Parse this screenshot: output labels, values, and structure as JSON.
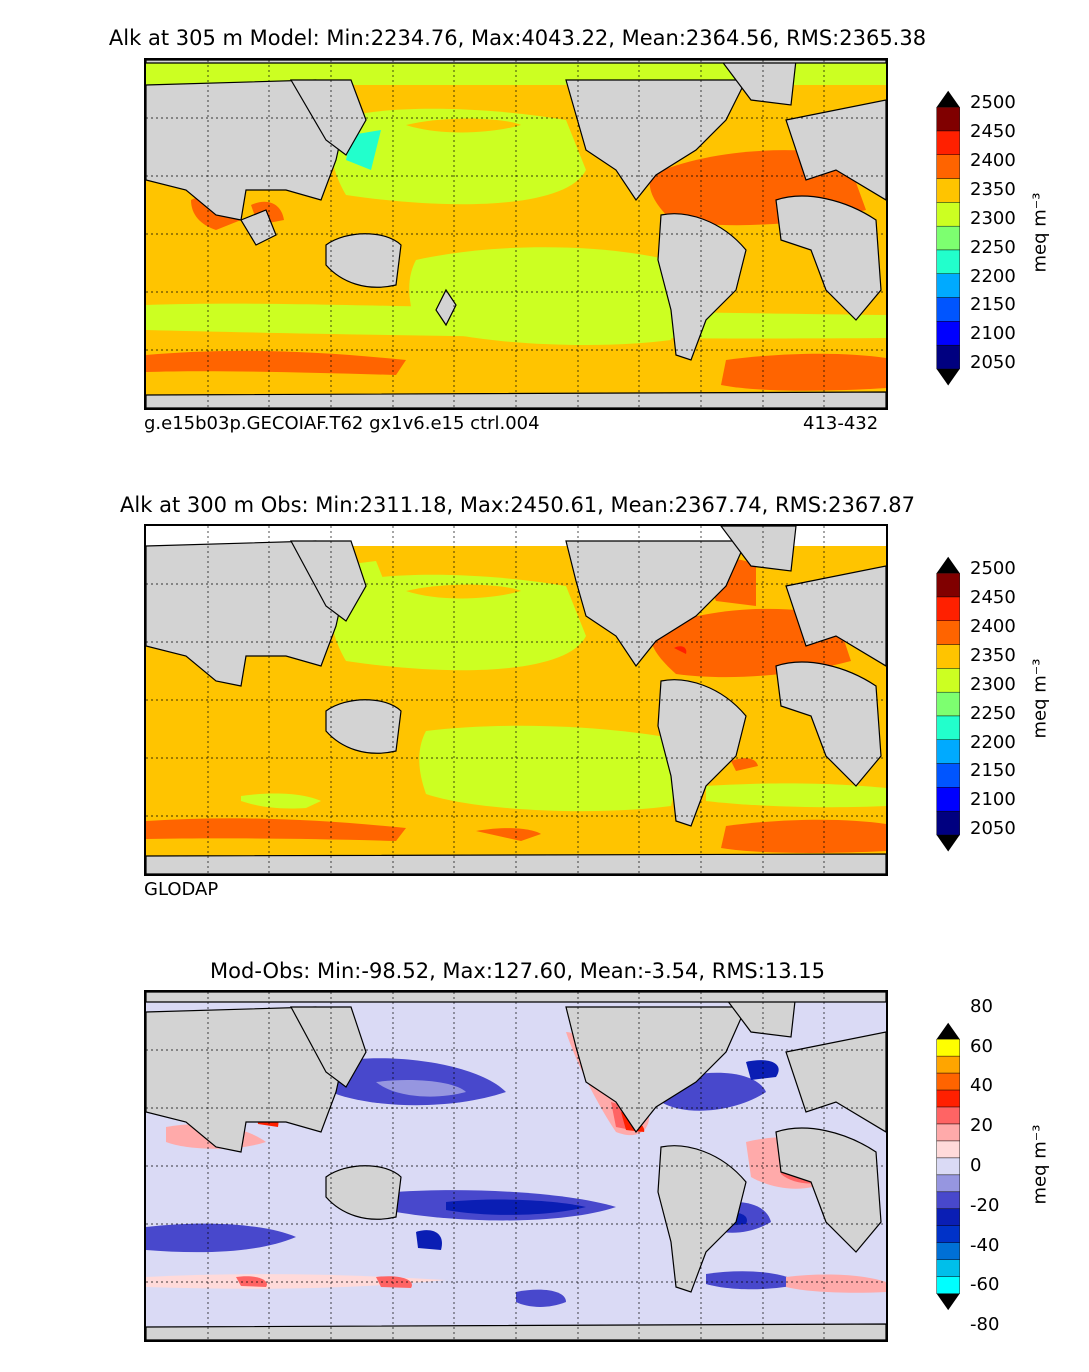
{
  "panels": [
    {
      "title": "Alk at 305 m Model: Min:2234.76, Max:4043.22, Mean:2364.56, RMS:2365.38",
      "label_left": "g.e15b03p.GECOIAF.T62 gx1v6.e15 ctrl.004",
      "label_right": "413-432"
    },
    {
      "title": "Alk at 300 m Obs: Min:2311.18, Max:2450.61, Mean:2367.74, RMS:2367.87",
      "label_left": "GLODAP"
    },
    {
      "title": "Mod-Obs: Min:-98.52, Max:127.60, Mean:-3.54, RMS:13.15"
    }
  ],
  "colorbars": {
    "alk": {
      "unit": "meq m⁻³",
      "ticks": [
        "2500",
        "2450",
        "2400",
        "2350",
        "2300",
        "2250",
        "2200",
        "2150",
        "2100",
        "2050"
      ],
      "colors": [
        "#800000",
        "#ff2000",
        "#ff6400",
        "#ffc400",
        "#ccff22",
        "#7dff70",
        "#22ffcc",
        "#00aaff",
        "#0055ff",
        "#0000ff",
        "#000080"
      ]
    },
    "diff": {
      "unit": "meq m⁻³",
      "ticks": [
        "80",
        "60",
        "40",
        "20",
        "0",
        "-20",
        "-40",
        "-60",
        "-80"
      ],
      "colors": [
        "#ffff00",
        "#ffa500",
        "#ff6400",
        "#ff2000",
        "#ff6464",
        "#ffaaaa",
        "#ffdada",
        "#dadaf5",
        "#9696e0",
        "#4848cc",
        "#0a1eb4",
        "#0032c8",
        "#0070d6",
        "#00bfea",
        "#00ffff"
      ]
    }
  },
  "chart_data": [
    {
      "type": "heatmap",
      "title": "Alk at 305 m Model: Min:2234.76, Max:4043.22, Mean:2364.56, RMS:2365.38",
      "variable": "Alk",
      "depth_m": 305,
      "source": "Model",
      "stats": {
        "min": 2234.76,
        "max": 4043.22,
        "mean": 2364.56,
        "rms": 2365.38
      },
      "colorbar_levels": [
        2050,
        2100,
        2150,
        2200,
        2250,
        2300,
        2350,
        2400,
        2450,
        2500
      ],
      "unit": "meq m⁻³"
    },
    {
      "type": "heatmap",
      "title": "Alk at 300 m Obs: Min:2311.18, Max:2450.61, Mean:2367.74, RMS:2367.87",
      "variable": "Alk",
      "depth_m": 300,
      "source": "Obs",
      "stats": {
        "min": 2311.18,
        "max": 2450.61,
        "mean": 2367.74,
        "rms": 2367.87
      },
      "colorbar_levels": [
        2050,
        2100,
        2150,
        2200,
        2250,
        2300,
        2350,
        2400,
        2450,
        2500
      ],
      "unit": "meq m⁻³"
    },
    {
      "type": "heatmap",
      "title": "Mod-Obs: Min:-98.52, Max:127.60, Mean:-3.54, RMS:13.15",
      "stats": {
        "min": -98.52,
        "max": 127.6,
        "mean": -3.54,
        "rms": 13.15
      },
      "colorbar_levels": [
        -80,
        -60,
        -40,
        -20,
        0,
        20,
        40,
        60,
        80
      ],
      "unit": "meq m⁻³"
    }
  ]
}
